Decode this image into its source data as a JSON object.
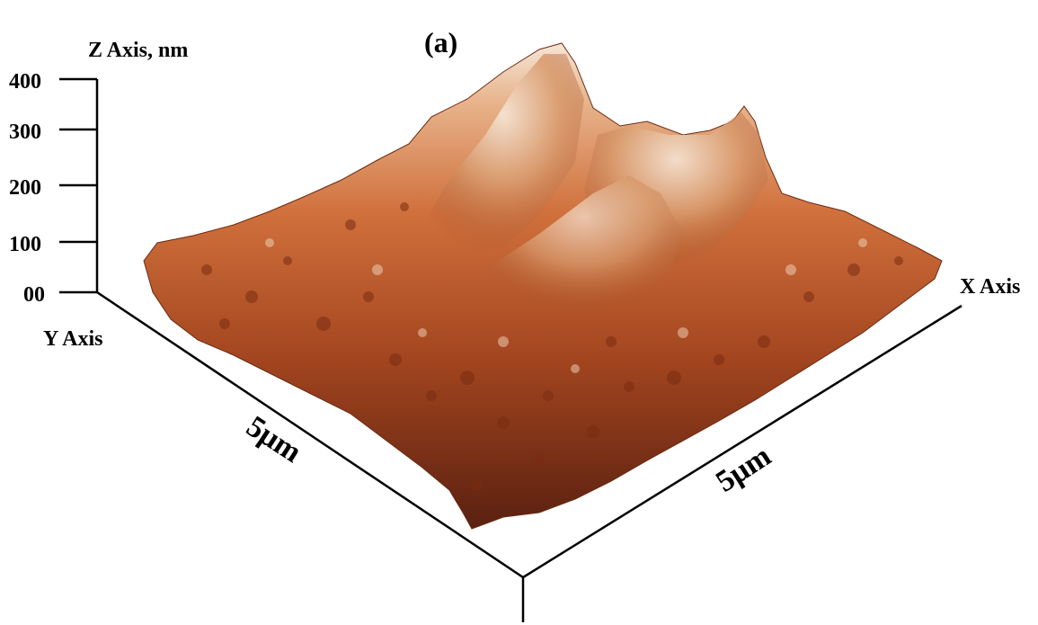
{
  "chart_data": {
    "type": "surface",
    "panel_label": "(a)",
    "z_axis": {
      "label": "Z Axis, nm",
      "ticks": [
        "400",
        "300",
        "200",
        "100",
        "00"
      ],
      "range": [
        0,
        400
      ],
      "unit": "nm"
    },
    "x_axis": {
      "label": "X Axis",
      "length_label": "5μm",
      "range_um": [
        0,
        5
      ]
    },
    "y_axis": {
      "label": "Y Axis",
      "length_label": "5μm",
      "range_um": [
        0,
        5
      ]
    },
    "colormap": [
      "#5a2010",
      "#a3451f",
      "#d0703c",
      "#e8b48c",
      "#f5e6d6"
    ],
    "grid": false,
    "legend": "none"
  }
}
